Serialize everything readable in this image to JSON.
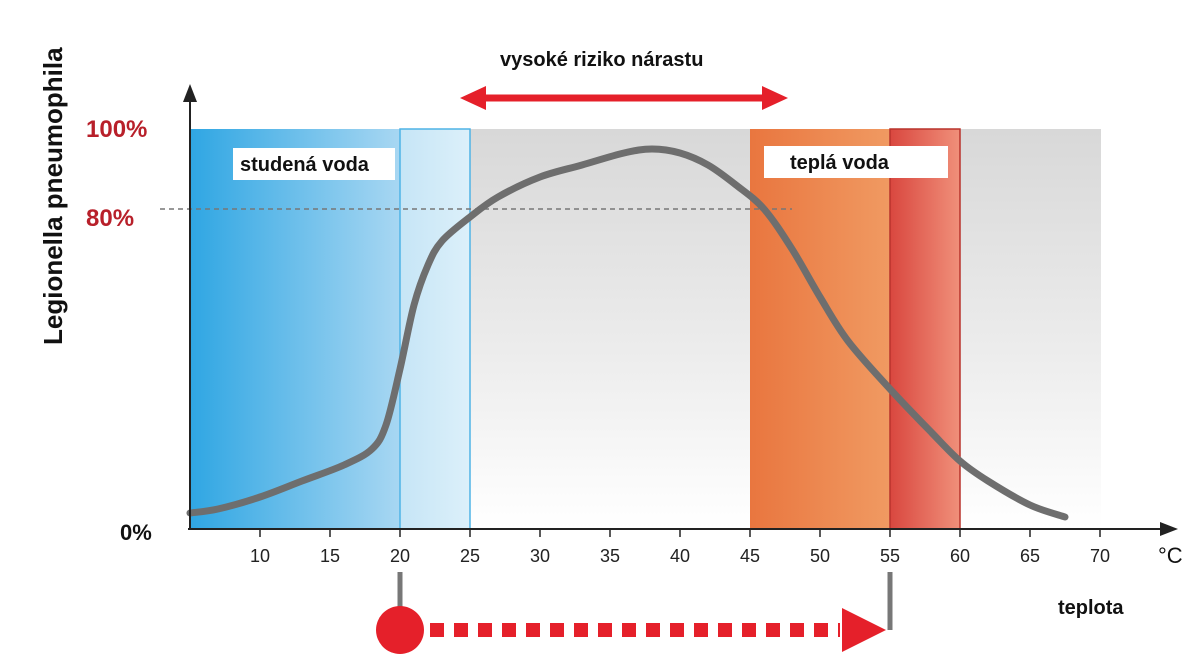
{
  "chart_data": {
    "type": "line",
    "ylabel": "Legionella pneumophila",
    "xlabel": "teplota",
    "x_unit": "°C",
    "xlim": [
      5,
      70
    ],
    "x_ticks": [
      10,
      15,
      20,
      25,
      30,
      35,
      40,
      45,
      50,
      55,
      60,
      65,
      70
    ],
    "y_ticks": [
      {
        "value": 0,
        "label": "0%"
      },
      {
        "value": 80,
        "label": "80%"
      },
      {
        "value": 100,
        "label": "100%"
      }
    ],
    "ylim": [
      0,
      100
    ],
    "series": [
      {
        "x": [
          5,
          7,
          10,
          13,
          16,
          18,
          19,
          20,
          21,
          22,
          23,
          25,
          27,
          30,
          33,
          36,
          38,
          40,
          42,
          44,
          46,
          48,
          50,
          52,
          55,
          58,
          60,
          62,
          65,
          67.5
        ],
        "y": [
          4,
          5,
          8,
          12,
          16,
          20,
          26,
          40,
          56,
          66,
          72,
          78,
          83,
          88,
          91,
          94,
          95,
          94,
          91,
          86,
          80,
          70,
          58,
          47,
          35,
          24,
          17,
          12,
          6,
          3
        ]
      }
    ],
    "zones": [
      {
        "label": "studená voda",
        "from": 5,
        "to": 20,
        "color": "#39a9e0"
      },
      {
        "label": "",
        "from": 20,
        "to": 25,
        "color": "#bcdff4"
      },
      {
        "label": "teplá voda",
        "from": 45,
        "to": 55,
        "color": "#ea7a45"
      },
      {
        "label": "",
        "from": 55,
        "to": 60,
        "color": "#e0574a"
      }
    ],
    "risk_range": {
      "label": "vysoké riziko nárastu",
      "from": 25,
      "to": 48
    },
    "reference_line": {
      "y": 80,
      "style": "dashed"
    },
    "transition_arrow": {
      "from": 20,
      "to": 55,
      "color": "#e5202a",
      "style": "dashed"
    },
    "colors": {
      "curve": "#6e6e6e",
      "accent_red": "#e5202a",
      "axis_red": "#b8202a",
      "background_band": "#d8d8d8"
    }
  }
}
